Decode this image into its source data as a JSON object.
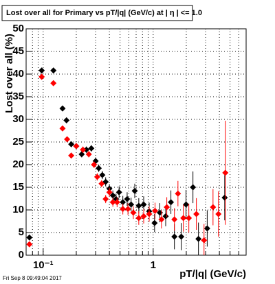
{
  "chart_data": {
    "type": "scatter",
    "title": "Lost over all for Primary vs pT/|q| (GeV/c) at |  η | <= 1.0",
    "x_label": "pT/|q| (GeV/c)",
    "y_label": "Lost over all (%)",
    "footer": "Fri Sep  8 09:49:04 2017",
    "xscale": "log",
    "xlim": [
      0.07,
      7
    ],
    "ylim": [
      0,
      50
    ],
    "xticks": [
      {
        "value": 0.1,
        "label": "10⁻¹"
      },
      1
    ],
    "xminorticks": [
      0.08,
      0.09,
      0.2,
      0.3,
      0.4,
      0.5,
      0.6,
      0.7,
      0.8,
      0.9,
      2,
      3,
      4,
      5,
      6,
      7
    ],
    "yticks": [
      0,
      5,
      10,
      15,
      20,
      25,
      30,
      35,
      40,
      45,
      50
    ],
    "grid": true,
    "series": [
      {
        "color": "#000000",
        "x": [
          0.075,
          0.097,
          0.124,
          0.15,
          0.163,
          0.18,
          0.2,
          0.224,
          0.247,
          0.274,
          0.3,
          0.32,
          0.345,
          0.37,
          0.4,
          0.43,
          0.46,
          0.49,
          0.53,
          0.58,
          0.63,
          0.68,
          0.74,
          0.82,
          0.92,
          1.03,
          1.15,
          1.3,
          1.45,
          1.56,
          1.8,
          1.99,
          2.3,
          2.58,
          3.1,
          4.47
        ],
        "values": [
          3.9,
          40.8,
          40.8,
          32.4,
          29.8,
          24.5,
          24.1,
          22.3,
          23.3,
          23.6,
          20.8,
          19.2,
          17.7,
          16.2,
          14.7,
          13.2,
          12.4,
          13.9,
          11.7,
          12.4,
          11.2,
          14.2,
          10.9,
          11.2,
          9.7,
          7.1,
          9.4,
          8.6,
          11.7,
          4.1,
          4.1,
          11.2,
          15.0,
          3.6,
          5.9,
          12.7
        ],
        "errors": [
          0.6,
          0.6,
          0.6,
          0.6,
          0.6,
          0.6,
          0.6,
          0.7,
          0.7,
          0.7,
          0.8,
          0.8,
          0.9,
          1.0,
          1.0,
          1.1,
          1.2,
          1.3,
          1.4,
          1.5,
          1.5,
          1.6,
          1.7,
          1.8,
          1.9,
          2.0,
          2.1,
          2.2,
          2.6,
          2.8,
          3.0,
          3.2,
          3.5,
          3.6,
          4.0,
          5.0
        ]
      },
      {
        "color": "#ff0000",
        "x": [
          0.075,
          0.097,
          0.124,
          0.15,
          0.165,
          0.18,
          0.2,
          0.23,
          0.26,
          0.29,
          0.31,
          0.34,
          0.37,
          0.4,
          0.43,
          0.47,
          0.53,
          0.59,
          0.66,
          0.74,
          0.82,
          0.92,
          1.04,
          1.19,
          1.33,
          1.56,
          1.68,
          1.88,
          2.11,
          2.47,
          2.9,
          3.5,
          3.92,
          4.53
        ],
        "values": [
          2.4,
          39.4,
          38.0,
          28.0,
          25.6,
          22.0,
          24.1,
          23.3,
          22.3,
          20.0,
          17.3,
          15.8,
          12.4,
          13.9,
          11.7,
          11.7,
          10.2,
          10.2,
          9.4,
          8.2,
          8.6,
          9.1,
          9.8,
          7.9,
          10.6,
          7.9,
          13.6,
          8.2,
          8.2,
          9.1,
          3.3,
          10.6,
          9.1,
          18.2
        ],
        "errors": [
          0.6,
          0.6,
          0.6,
          0.6,
          0.6,
          0.6,
          0.6,
          0.7,
          0.7,
          0.7,
          0.8,
          0.8,
          0.9,
          1.0,
          1.0,
          1.1,
          1.2,
          1.3,
          1.4,
          1.5,
          1.6,
          1.7,
          1.8,
          2.0,
          2.2,
          2.5,
          2.8,
          3.0,
          3.2,
          3.5,
          3.6,
          4.0,
          5.0,
          11.5
        ]
      }
    ]
  }
}
